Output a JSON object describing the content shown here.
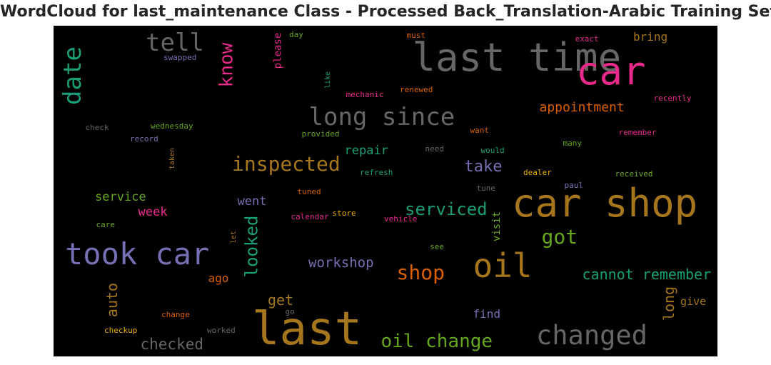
{
  "chart_data": {
    "type": "wordcloud",
    "title": "WordCloud for last_maintenance Class - Processed Back_Translation-Arabic Training Set",
    "background": "#000000",
    "words": [
      {
        "text": "last time",
        "color": "#666666",
        "vertical": false
      },
      {
        "text": "car",
        "color": "#e7298a",
        "vertical": false
      },
      {
        "text": "car shop",
        "color": "#a6761d",
        "vertical": false
      },
      {
        "text": "last",
        "color": "#a6761d",
        "vertical": false
      },
      {
        "text": "took car",
        "color": "#7570b3",
        "vertical": false
      },
      {
        "text": "oil",
        "color": "#a6761d",
        "vertical": false
      },
      {
        "text": "changed",
        "color": "#666666",
        "vertical": false
      },
      {
        "text": "long since",
        "color": "#666666",
        "vertical": false
      },
      {
        "text": "date",
        "color": "#1b9e77",
        "vertical": true
      },
      {
        "text": "tell",
        "color": "#666666",
        "vertical": false
      },
      {
        "text": "inspected",
        "color": "#a6761d",
        "vertical": false
      },
      {
        "text": "know",
        "color": "#e7298a",
        "vertical": true
      },
      {
        "text": "shop",
        "color": "#d95f02",
        "vertical": false
      },
      {
        "text": "got",
        "color": "#66a61e",
        "vertical": false
      },
      {
        "text": "oil change",
        "color": "#66a61e",
        "vertical": false
      },
      {
        "text": "looked",
        "color": "#1b9e77",
        "vertical": true
      },
      {
        "text": "serviced",
        "color": "#1b9e77",
        "vertical": false
      },
      {
        "text": "take",
        "color": "#7570b3",
        "vertical": false
      },
      {
        "text": "appointment",
        "color": "#d95f02",
        "vertical": false
      },
      {
        "text": "cannot remember",
        "color": "#1b9e77",
        "vertical": false
      },
      {
        "text": "workshop",
        "color": "#7570b3",
        "vertical": false
      },
      {
        "text": "checked",
        "color": "#666666",
        "vertical": false
      },
      {
        "text": "auto",
        "color": "#a6761d",
        "vertical": true
      },
      {
        "text": "long",
        "color": "#a6761d",
        "vertical": true
      },
      {
        "text": "get",
        "color": "#a6761d",
        "vertical": false
      },
      {
        "text": "repair",
        "color": "#1b9e77",
        "vertical": false
      },
      {
        "text": "service",
        "color": "#66a61e",
        "vertical": false
      },
      {
        "text": "week",
        "color": "#e7298a",
        "vertical": false
      },
      {
        "text": "went",
        "color": "#7570b3",
        "vertical": false
      },
      {
        "text": "bring",
        "color": "#a6761d",
        "vertical": false
      },
      {
        "text": "ago",
        "color": "#d95f02",
        "vertical": false
      },
      {
        "text": "please",
        "color": "#e7298a",
        "vertical": true
      },
      {
        "text": "visit",
        "color": "#66a61e",
        "vertical": true
      },
      {
        "text": "find",
        "color": "#7570b3",
        "vertical": false
      },
      {
        "text": "give",
        "color": "#a6761d",
        "vertical": false
      },
      {
        "text": "swapped",
        "color": "#7570b3",
        "vertical": false
      },
      {
        "text": "day",
        "color": "#66a61e",
        "vertical": false
      },
      {
        "text": "must",
        "color": "#d95f02",
        "vertical": false
      },
      {
        "text": "exact",
        "color": "#e7298a",
        "vertical": false
      },
      {
        "text": "like",
        "color": "#1b9e77",
        "vertical": true
      },
      {
        "text": "mechanic",
        "color": "#e7298a",
        "vertical": false
      },
      {
        "text": "renewed",
        "color": "#d95f02",
        "vertical": false
      },
      {
        "text": "recently",
        "color": "#e7298a",
        "vertical": false
      },
      {
        "text": "check",
        "color": "#666666",
        "vertical": false
      },
      {
        "text": "wednesday",
        "color": "#66a61e",
        "vertical": false
      },
      {
        "text": "record",
        "color": "#7570b3",
        "vertical": false
      },
      {
        "text": "provided",
        "color": "#66a61e",
        "vertical": false
      },
      {
        "text": "want",
        "color": "#d95f02",
        "vertical": false
      },
      {
        "text": "remember",
        "color": "#e7298a",
        "vertical": false
      },
      {
        "text": "many",
        "color": "#66a61e",
        "vertical": false
      },
      {
        "text": "need",
        "color": "#666666",
        "vertical": false
      },
      {
        "text": "would",
        "color": "#1b9e77",
        "vertical": false
      },
      {
        "text": "taken",
        "color": "#a6761d",
        "vertical": true
      },
      {
        "text": "refresh",
        "color": "#1b9e77",
        "vertical": false
      },
      {
        "text": "dealer",
        "color": "#e6ab02",
        "vertical": false
      },
      {
        "text": "received",
        "color": "#66a61e",
        "vertical": false
      },
      {
        "text": "tuned",
        "color": "#d95f02",
        "vertical": false
      },
      {
        "text": "tune",
        "color": "#666666",
        "vertical": false
      },
      {
        "text": "paul",
        "color": "#7570b3",
        "vertical": false
      },
      {
        "text": "care",
        "color": "#66a61e",
        "vertical": false
      },
      {
        "text": "calendar",
        "color": "#e7298a",
        "vertical": false
      },
      {
        "text": "store",
        "color": "#e6ab02",
        "vertical": false
      },
      {
        "text": "vehicle",
        "color": "#e7298a",
        "vertical": false
      },
      {
        "text": "let",
        "color": "#a6761d",
        "vertical": true
      },
      {
        "text": "see",
        "color": "#66a61e",
        "vertical": false
      },
      {
        "text": "change",
        "color": "#d95f02",
        "vertical": false
      },
      {
        "text": "go",
        "color": "#666666",
        "vertical": false
      },
      {
        "text": "checkup",
        "color": "#e6ab02",
        "vertical": false
      },
      {
        "text": "worked",
        "color": "#666666",
        "vertical": false
      }
    ]
  }
}
